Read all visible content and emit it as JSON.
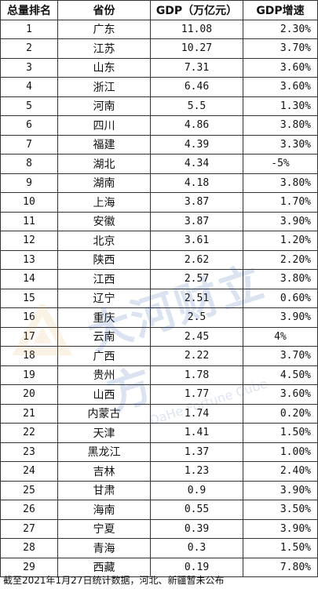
{
  "table": {
    "headers": [
      "总量排名",
      "省份",
      "GDP（万亿元）",
      "GDP增速"
    ],
    "rows": [
      {
        "rank": "1",
        "province": "广东",
        "gdp": "11.08",
        "growth": "2.30%"
      },
      {
        "rank": "2",
        "province": "江苏",
        "gdp": "10.27",
        "growth": "3.70%"
      },
      {
        "rank": "3",
        "province": "山东",
        "gdp": "7.31",
        "growth": "3.60%"
      },
      {
        "rank": "4",
        "province": "浙江",
        "gdp": "6.46",
        "growth": "3.60%"
      },
      {
        "rank": "5",
        "province": "河南",
        "gdp": "5.5",
        "growth": "1.30%"
      },
      {
        "rank": "6",
        "province": "四川",
        "gdp": "4.86",
        "growth": "3.80%"
      },
      {
        "rank": "7",
        "province": "福建",
        "gdp": "4.39",
        "growth": "3.30%"
      },
      {
        "rank": "8",
        "province": "湖北",
        "gdp": "4.34",
        "growth": "-5%"
      },
      {
        "rank": "9",
        "province": "湖南",
        "gdp": "4.18",
        "growth": "3.80%"
      },
      {
        "rank": "10",
        "province": "上海",
        "gdp": "3.87",
        "growth": "1.70%"
      },
      {
        "rank": "11",
        "province": "安徽",
        "gdp": "3.87",
        "growth": "3.90%"
      },
      {
        "rank": "12",
        "province": "北京",
        "gdp": "3.61",
        "growth": "1.20%"
      },
      {
        "rank": "13",
        "province": "陕西",
        "gdp": "2.62",
        "growth": "2.20%"
      },
      {
        "rank": "14",
        "province": "江西",
        "gdp": "2.57",
        "growth": "3.80%"
      },
      {
        "rank": "15",
        "province": "辽宁",
        "gdp": "2.51",
        "growth": "0.60%"
      },
      {
        "rank": "16",
        "province": "重庆",
        "gdp": "2.5",
        "growth": "3.90%"
      },
      {
        "rank": "17",
        "province": "云南",
        "gdp": "2.45",
        "growth": "4%"
      },
      {
        "rank": "18",
        "province": "广西",
        "gdp": "2.22",
        "growth": "3.70%"
      },
      {
        "rank": "19",
        "province": "贵州",
        "gdp": "1.78",
        "growth": "4.50%"
      },
      {
        "rank": "20",
        "province": "山西",
        "gdp": "1.77",
        "growth": "3.60%"
      },
      {
        "rank": "21",
        "province": "内蒙古",
        "gdp": "1.74",
        "growth": "0.20%"
      },
      {
        "rank": "22",
        "province": "天津",
        "gdp": "1.41",
        "growth": "1.50%"
      },
      {
        "rank": "23",
        "province": "黑龙江",
        "gdp": "1.37",
        "growth": "1.00%"
      },
      {
        "rank": "24",
        "province": "吉林",
        "gdp": "1.23",
        "growth": "2.40%"
      },
      {
        "rank": "25",
        "province": "甘肃",
        "gdp": "0.9",
        "growth": "3.90%"
      },
      {
        "rank": "26",
        "province": "海南",
        "gdp": "0.55",
        "growth": "3.50%"
      },
      {
        "rank": "27",
        "province": "宁夏",
        "gdp": "0.39",
        "growth": "3.90%"
      },
      {
        "rank": "28",
        "province": "青海",
        "gdp": "0.3",
        "growth": "1.50%"
      },
      {
        "rank": "29",
        "province": "西藏",
        "gdp": "0.19",
        "growth": "7.80%"
      }
    ]
  },
  "footnote": "截至2021年1月27日统计数据，河北、新疆暂未公布",
  "watermark": {
    "main": "大河财立方",
    "sub": "DaHe Fortune Cube",
    "color": "#2a5aa8"
  }
}
